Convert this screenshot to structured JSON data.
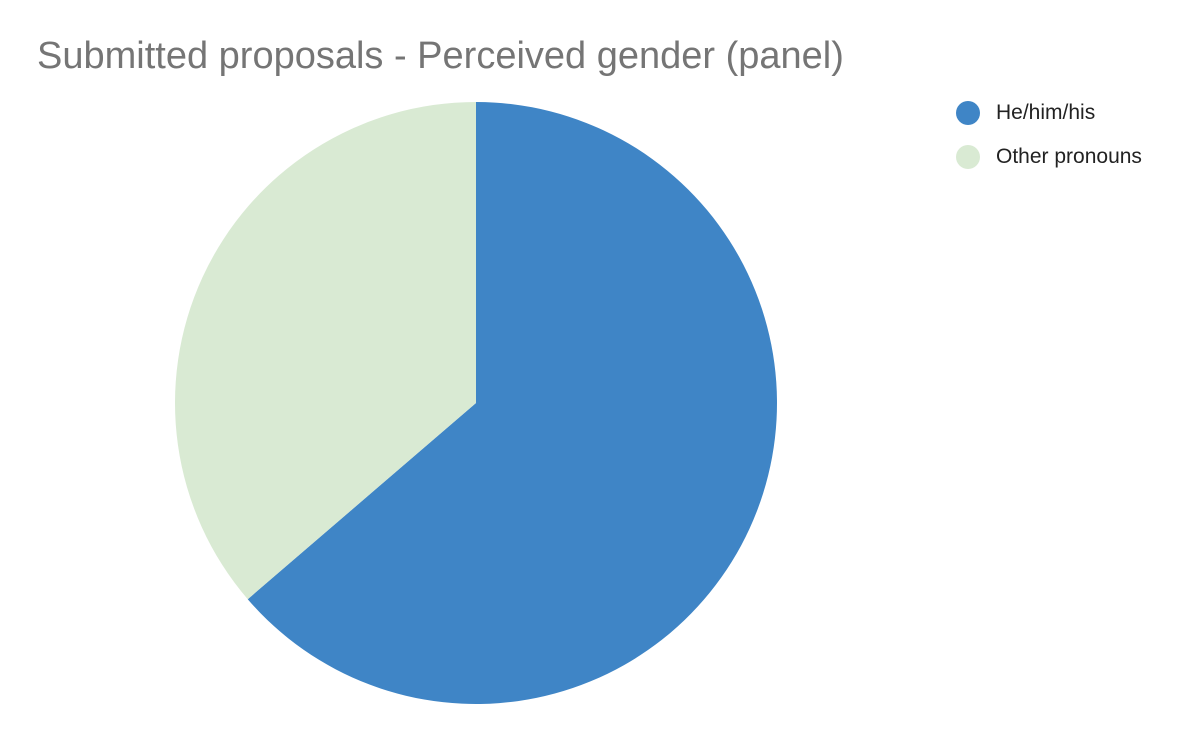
{
  "chart_data": {
    "type": "pie",
    "title": "Submitted proposals - Perceived gender (panel)",
    "categories": [
      "He/him/his",
      "Other pronouns"
    ],
    "values": [
      63.7,
      36.3
    ],
    "value_unit": "percent (estimated from slice angles)",
    "colors": [
      "#3f85c6",
      "#d9ead3"
    ],
    "start_angle": "12 o'clock",
    "direction": "clockwise",
    "legend": {
      "position": "right",
      "entries": [
        "He/him/his",
        "Other pronouns"
      ]
    }
  }
}
